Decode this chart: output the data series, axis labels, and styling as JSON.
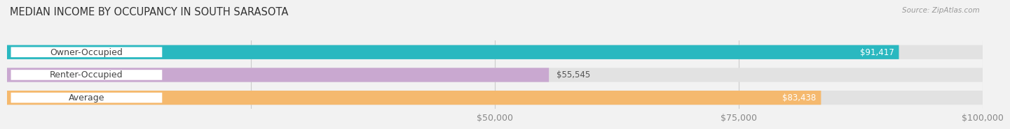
{
  "title": "MEDIAN INCOME BY OCCUPANCY IN SOUTH SARASOTA",
  "source": "Source: ZipAtlas.com",
  "categories": [
    "Owner-Occupied",
    "Renter-Occupied",
    "Average"
  ],
  "values": [
    91417,
    55545,
    83438
  ],
  "bar_colors": [
    "#2ab8c0",
    "#c9a8d0",
    "#f5b96e"
  ],
  "bar_labels": [
    "$91,417",
    "$55,545",
    "$83,438"
  ],
  "xlim": [
    0,
    100000
  ],
  "xticks": [
    25000,
    50000,
    75000,
    100000
  ],
  "xtick_labels": [
    "",
    "$50,000",
    "$75,000",
    "$100,000"
  ],
  "background_color": "#f2f2f2",
  "bar_bg_color": "#e2e2e2",
  "title_fontsize": 10.5,
  "label_fontsize": 9,
  "value_fontsize": 8.5,
  "source_fontsize": 7.5
}
